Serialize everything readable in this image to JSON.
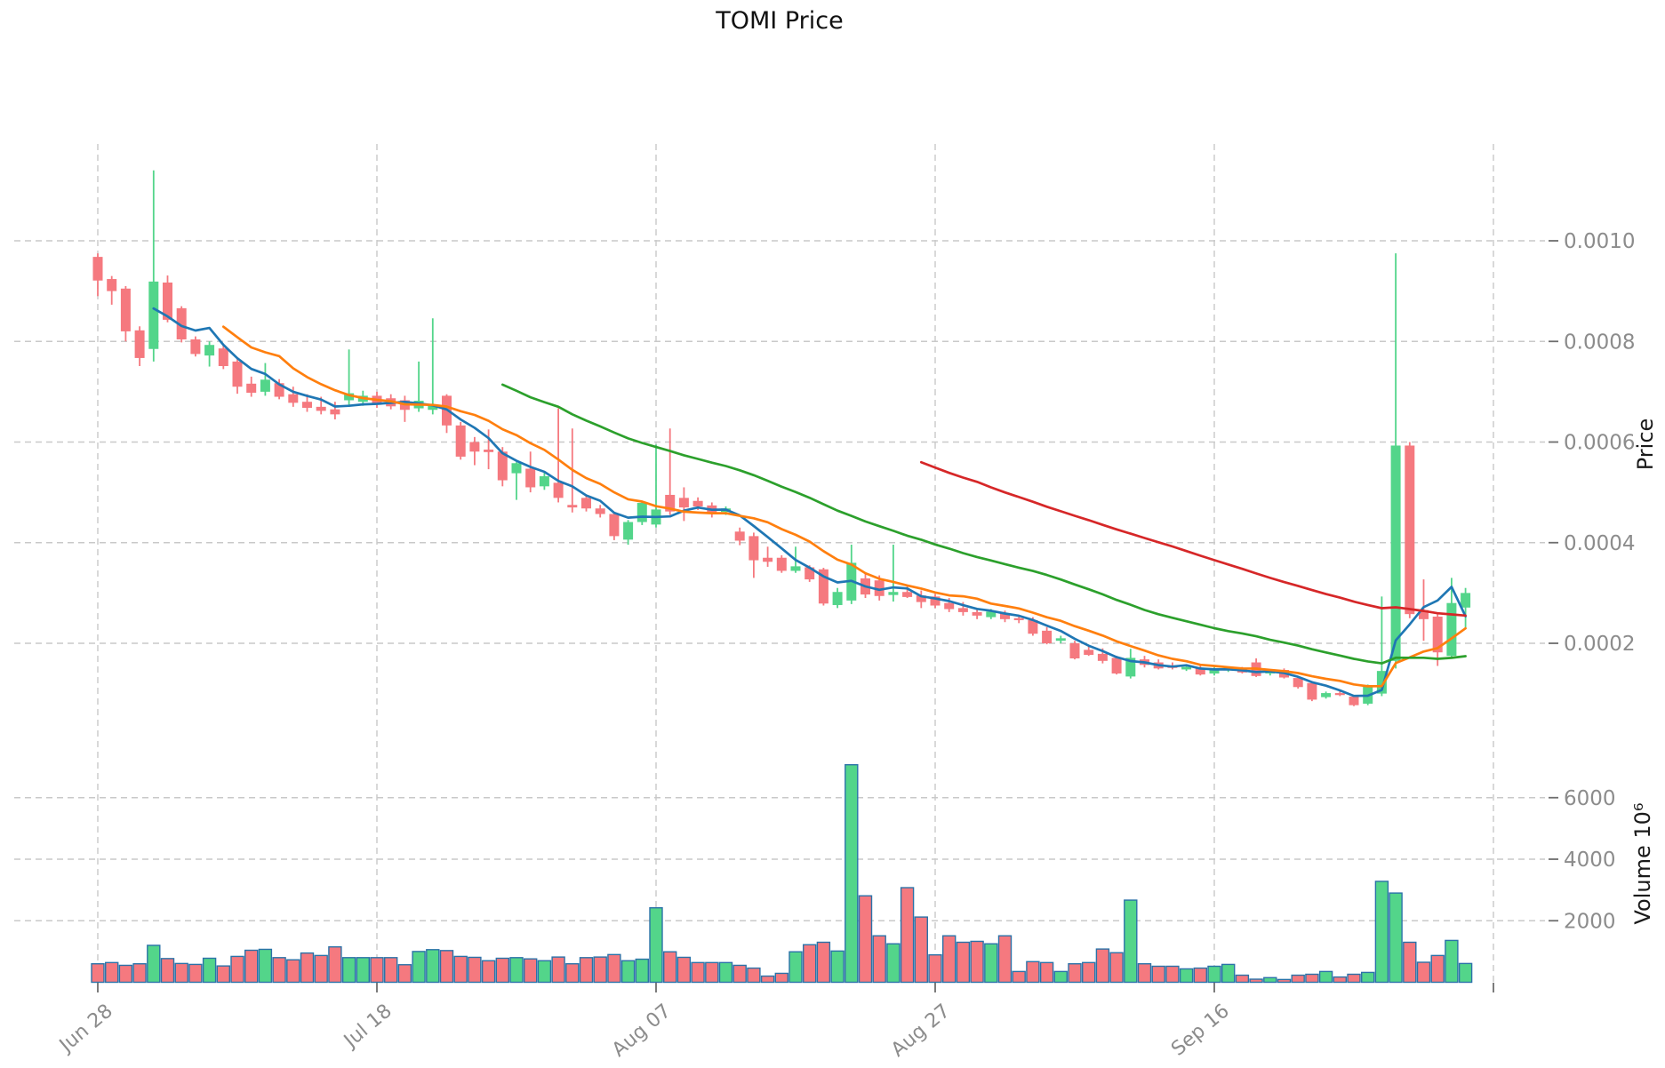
{
  "title": "TOMI Price",
  "price_axis_label": "Price",
  "volume_axis_label": "Volume  10⁶",
  "colors": {
    "up": "#53d58a",
    "down": "#f5797f",
    "volume_edge": "#2b72a8",
    "ma5": "#1f77b4",
    "ma10": "#ff7f0e",
    "ma30": "#2ca02c",
    "ma60": "#d62728",
    "grid": "#c9c9c9",
    "tick_mark": "#6e6e6e",
    "tick_text": "#8c8c8c",
    "label_text": "#1a1a1a"
  },
  "chart_data": {
    "type": "candlestick",
    "subtype": "ohlc-with-volume-panel",
    "title": "TOMI Price",
    "grid": true,
    "legend": false,
    "x_ticks": [
      {
        "label": "Jun 28",
        "day": 0
      },
      {
        "label": "Jul 18",
        "day": 20
      },
      {
        "label": "Aug 07",
        "day": 40
      },
      {
        "label": "Aug 27",
        "day": 60
      },
      {
        "label": "Sep 16",
        "day": 80
      },
      {
        "label": "",
        "day": 100
      }
    ],
    "price_ticks": [
      {
        "value": 0.0002,
        "label": "0.0002"
      },
      {
        "value": 0.0004,
        "label": "0.0004"
      },
      {
        "value": 0.0006,
        "label": "0.0006"
      },
      {
        "value": 0.0008,
        "label": "0.0008"
      },
      {
        "value": 0.001,
        "label": "0.0010"
      }
    ],
    "volume_ticks": [
      {
        "value": 2000,
        "label": "2000"
      },
      {
        "value": 4000,
        "label": "4000"
      },
      {
        "value": 6000,
        "label": "6000"
      }
    ],
    "volume_unit": "10⁶",
    "ylim_price": [
      0,
      0.00119
    ],
    "ylim_volume": [
      0,
      7100
    ],
    "ma_series": [
      {
        "name": "MA5",
        "period": 5,
        "color_key": "ma5"
      },
      {
        "name": "MA10",
        "period": 10,
        "color_key": "ma10"
      },
      {
        "name": "MA30",
        "period": 30,
        "color_key": "ma30"
      },
      {
        "name": "MA60",
        "period": 60,
        "color_key": "ma60"
      }
    ],
    "dates": [
      "Jun 28",
      "Jun 29",
      "Jun 30",
      "Jul 01",
      "Jul 02",
      "Jul 03",
      "Jul 04",
      "Jul 05",
      "Jul 06",
      "Jul 07",
      "Jul 08",
      "Jul 09",
      "Jul 10",
      "Jul 11",
      "Jul 12",
      "Jul 13",
      "Jul 14",
      "Jul 15",
      "Jul 16",
      "Jul 17",
      "Jul 18",
      "Jul 19",
      "Jul 20",
      "Jul 21",
      "Jul 22",
      "Jul 23",
      "Jul 24",
      "Jul 25",
      "Jul 26",
      "Jul 27",
      "Jul 28",
      "Jul 29",
      "Jul 30",
      "Jul 31",
      "Aug 01",
      "Aug 02",
      "Aug 03",
      "Aug 04",
      "Aug 05",
      "Aug 06",
      "Aug 07",
      "Aug 08",
      "Aug 09",
      "Aug 10",
      "Aug 11",
      "Aug 12",
      "Aug 13",
      "Aug 14",
      "Aug 15",
      "Aug 16",
      "Aug 17",
      "Aug 18",
      "Aug 19",
      "Aug 20",
      "Aug 21",
      "Aug 22",
      "Aug 23",
      "Aug 24",
      "Aug 25",
      "Aug 26",
      "Aug 27",
      "Aug 28",
      "Aug 29",
      "Aug 30",
      "Aug 31",
      "Sep 01",
      "Sep 02",
      "Sep 03",
      "Sep 04",
      "Sep 05",
      "Sep 06",
      "Sep 07",
      "Sep 08",
      "Sep 09",
      "Sep 10",
      "Sep 11",
      "Sep 12",
      "Sep 13",
      "Sep 14",
      "Sep 15",
      "Sep 16",
      "Sep 17",
      "Sep 18",
      "Sep 19",
      "Sep 20",
      "Sep 21",
      "Sep 22",
      "Sep 23",
      "Sep 24",
      "Sep 25",
      "Sep 26",
      "Sep 27",
      "Sep 28",
      "Sep 29",
      "Sep 30",
      "Oct 01",
      "Oct 02",
      "Oct 03",
      "Oct 04"
    ],
    "ohlcv_columns": [
      "open",
      "high",
      "low",
      "close",
      "volume_millions"
    ],
    "ohlcv": [
      [
        0.000968,
        0.000975,
        0.00089,
        0.000921,
        600
      ],
      [
        0.000924,
        0.00093,
        0.000873,
        0.0009,
        640
      ],
      [
        0.000905,
        0.00091,
        0.0008,
        0.00082,
        550
      ],
      [
        0.000822,
        0.00083,
        0.000751,
        0.000767,
        600
      ],
      [
        0.000785,
        0.00114,
        0.00076,
        0.000919,
        1200
      ],
      [
        0.000917,
        0.000931,
        0.000838,
        0.000843,
        770
      ],
      [
        0.000866,
        0.00087,
        0.000798,
        0.000804,
        610
      ],
      [
        0.000804,
        0.00081,
        0.00077,
        0.000775,
        580
      ],
      [
        0.000772,
        0.0008,
        0.00075,
        0.000793,
        780
      ],
      [
        0.000786,
        0.000795,
        0.000745,
        0.000751,
        530
      ],
      [
        0.00076,
        0.000765,
        0.000696,
        0.00071,
        840
      ],
      [
        0.000716,
        0.00073,
        0.00069,
        0.000698,
        1040
      ],
      [
        0.0007,
        0.000757,
        0.000692,
        0.000724,
        1070
      ],
      [
        0.000717,
        0.000725,
        0.000685,
        0.00069,
        800
      ],
      [
        0.000695,
        0.00071,
        0.00067,
        0.000678,
        730
      ],
      [
        0.00068,
        0.000695,
        0.00066,
        0.000668,
        950
      ],
      [
        0.00067,
        0.00069,
        0.000655,
        0.000662,
        870
      ],
      [
        0.000665,
        0.00068,
        0.000645,
        0.000655,
        1150
      ],
      [
        0.000683,
        0.000784,
        0.00067,
        0.000697,
        800
      ],
      [
        0.00068,
        0.000702,
        0.000672,
        0.000692,
        800
      ],
      [
        0.000692,
        0.0007,
        0.000668,
        0.000674,
        800
      ],
      [
        0.000687,
        0.000695,
        0.000665,
        0.000671,
        800
      ],
      [
        0.000683,
        0.000692,
        0.00064,
        0.000664,
        570
      ],
      [
        0.000667,
        0.00076,
        0.00066,
        0.000682,
        1000
      ],
      [
        0.000664,
        0.000846,
        0.000655,
        0.000674,
        1060
      ],
      [
        0.000692,
        0.000695,
        0.000618,
        0.000633,
        1030
      ],
      [
        0.000633,
        0.00064,
        0.000565,
        0.000571,
        840
      ],
      [
        0.0006,
        0.00061,
        0.000554,
        0.000581,
        810
      ],
      [
        0.000585,
        0.000625,
        0.000546,
        0.00058,
        700
      ],
      [
        0.000581,
        0.00059,
        0.000512,
        0.000524,
        780
      ],
      [
        0.000538,
        0.00056,
        0.000485,
        0.000558,
        800
      ],
      [
        0.000547,
        0.000581,
        0.0005,
        0.00051,
        760
      ],
      [
        0.000512,
        0.00054,
        0.000505,
        0.000532,
        700
      ],
      [
        0.000519,
        0.000667,
        0.00048,
        0.000489,
        820
      ],
      [
        0.000475,
        0.000627,
        0.00046,
        0.00047,
        600
      ],
      [
        0.000489,
        0.000495,
        0.000462,
        0.000468,
        800
      ],
      [
        0.000468,
        0.000475,
        0.00045,
        0.000457,
        820
      ],
      [
        0.000457,
        0.00046,
        0.000405,
        0.000413,
        900
      ],
      [
        0.000406,
        0.000445,
        0.000396,
        0.000441,
        700
      ],
      [
        0.000441,
        0.000482,
        0.000435,
        0.000479,
        750
      ],
      [
        0.000436,
        0.000595,
        0.00043,
        0.000466,
        2420
      ],
      [
        0.000495,
        0.000627,
        0.000455,
        0.000462,
        990
      ],
      [
        0.000489,
        0.00051,
        0.000443,
        0.00047,
        810
      ],
      [
        0.000483,
        0.00049,
        0.000465,
        0.000472,
        640
      ],
      [
        0.000474,
        0.00048,
        0.00045,
        0.000457,
        640
      ],
      [
        0.000461,
        0.000472,
        0.000455,
        0.000468,
        640
      ],
      [
        0.000422,
        0.00043,
        0.000395,
        0.000404,
        550
      ],
      [
        0.000413,
        0.00042,
        0.00033,
        0.000365,
        460
      ],
      [
        0.00037,
        0.000392,
        0.000352,
        0.000362,
        200
      ],
      [
        0.00037,
        0.000375,
        0.00034,
        0.000344,
        290
      ],
      [
        0.000344,
        0.000392,
        0.00034,
        0.000353,
        990
      ],
      [
        0.000351,
        0.000355,
        0.000322,
        0.000327,
        1220
      ],
      [
        0.000347,
        0.00035,
        0.000275,
        0.000279,
        1300
      ],
      [
        0.000276,
        0.00031,
        0.00027,
        0.000302,
        1015
      ],
      [
        0.000285,
        0.000396,
        0.000278,
        0.00036,
        7070
      ],
      [
        0.000329,
        0.00034,
        0.00029,
        0.000297,
        2810
      ],
      [
        0.000325,
        0.000335,
        0.000285,
        0.000294,
        1510
      ],
      [
        0.000296,
        0.000396,
        0.000283,
        0.000302,
        1250
      ],
      [
        0.000302,
        0.000315,
        0.00029,
        0.000292,
        3075
      ],
      [
        0.000295,
        0.000305,
        0.00027,
        0.000282,
        2120
      ],
      [
        0.000293,
        0.000298,
        0.00027,
        0.000275,
        890
      ],
      [
        0.00028,
        0.00029,
        0.000262,
        0.000268,
        1510
      ],
      [
        0.00027,
        0.000282,
        0.000255,
        0.000262,
        1300
      ],
      [
        0.000262,
        0.00027,
        0.000248,
        0.000255,
        1330
      ],
      [
        0.000252,
        0.000268,
        0.000248,
        0.000263,
        1250
      ],
      [
        0.00026,
        0.000265,
        0.000242,
        0.000248,
        1510
      ],
      [
        0.00025,
        0.000256,
        0.00024,
        0.000246,
        350
      ],
      [
        0.000246,
        0.000252,
        0.000215,
        0.000219,
        670
      ],
      [
        0.000225,
        0.000232,
        0.000198,
        0.0002,
        640
      ],
      [
        0.000205,
        0.000215,
        0.0002,
        0.00021,
        350
      ],
      [
        0.0002,
        0.000205,
        0.000168,
        0.00017,
        600
      ],
      [
        0.000187,
        0.000195,
        0.000175,
        0.000177,
        640
      ],
      [
        0.000179,
        0.00019,
        0.00016,
        0.000165,
        1080
      ],
      [
        0.000171,
        0.000175,
        0.000138,
        0.00014,
        960
      ],
      [
        0.000134,
        0.000189,
        0.00013,
        0.000171,
        2670
      ],
      [
        0.000168,
        0.000175,
        0.000152,
        0.000157,
        600
      ],
      [
        0.000162,
        0.000168,
        0.000148,
        0.00015,
        520
      ],
      [
        0.000155,
        0.000162,
        0.000148,
        0.000151,
        520
      ],
      [
        0.000148,
        0.000158,
        0.000145,
        0.000153,
        435
      ],
      [
        0.00015,
        0.000155,
        0.000136,
        0.000138,
        460
      ],
      [
        0.00014,
        0.000152,
        0.000136,
        0.000148,
        520
      ],
      [
        0.000146,
        0.000154,
        0.000143,
        0.000151,
        580
      ],
      [
        0.00015,
        0.000153,
        0.00014,
        0.000142,
        230
      ],
      [
        0.000162,
        0.00017,
        0.000133,
        0.000135,
        100
      ],
      [
        0.00014,
        0.000148,
        0.000136,
        0.000145,
        150
      ],
      [
        0.000147,
        0.00015,
        0.00013,
        0.000132,
        90
      ],
      [
        0.000131,
        0.000135,
        0.00011,
        0.000113,
        230
      ],
      [
        0.000121,
        0.000125,
        8.5e-05,
        8.8e-05,
        260
      ],
      [
        9.3e-05,
        0.000104,
        9e-05,
        0.000101,
        350
      ],
      [
        0.000101,
        0.000105,
        9.5e-05,
        9.8e-05,
        170
      ],
      [
        9.4e-05,
        9.7e-05,
        7.5e-05,
        7.7e-05,
        260
      ],
      [
        8e-05,
        0.000118,
        7.7e-05,
        0.000115,
        320
      ],
      [
        0.0001,
        0.000293,
        9.5e-05,
        0.000145,
        3280
      ],
      [
        0.000165,
        0.000975,
        0.00015,
        0.000593,
        2900
      ],
      [
        0.000593,
        0.0006,
        0.00025,
        0.000258,
        1300
      ],
      [
        0.000266,
        0.000327,
        0.000205,
        0.000248,
        650
      ],
      [
        0.000253,
        0.00026,
        0.000155,
        0.000182,
        870
      ],
      [
        0.000175,
        0.00033,
        0.00017,
        0.00028,
        1360
      ],
      [
        0.000271,
        0.00031,
        0.000229,
        0.0003,
        610
      ]
    ]
  }
}
